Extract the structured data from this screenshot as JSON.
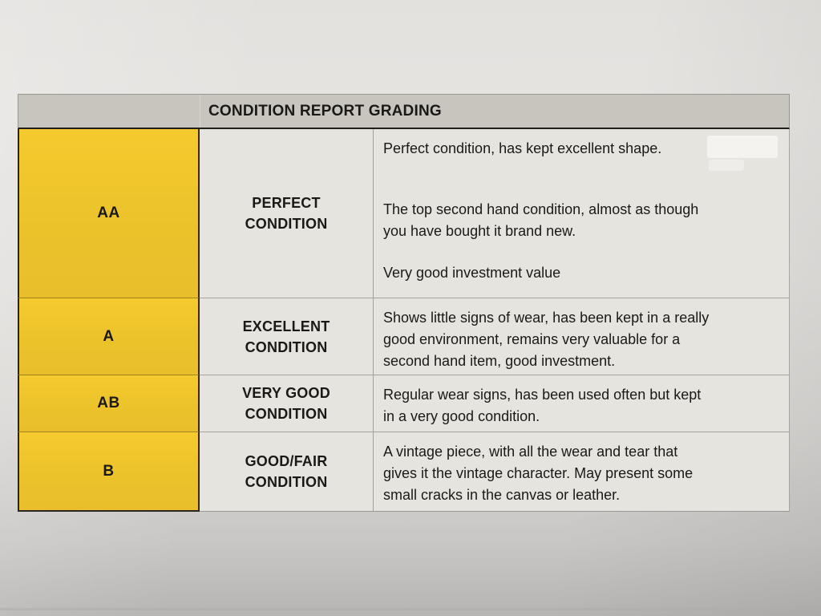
{
  "table": {
    "title": "CONDITION REPORT GRADING",
    "columns": [
      "grade",
      "condition",
      "description"
    ],
    "rows": [
      {
        "grade": "AA",
        "condition_lines": [
          "PERFECT",
          "CONDITION"
        ],
        "paragraphs": [
          "Perfect condition, has kept excellent shape.",
          "The top second hand condition, almost as though\nyou have bought it brand new.",
          "Very good investment value"
        ]
      },
      {
        "grade": "A",
        "condition_lines": [
          "EXCELLENT",
          "CONDITION"
        ],
        "paragraphs": [
          "Shows little signs of wear, has been kept in a really\ngood environment, remains very valuable for a\nsecond hand item, good investment."
        ]
      },
      {
        "grade": "AB",
        "condition_lines": [
          "VERY GOOD",
          "CONDITION"
        ],
        "paragraphs": [
          "Regular wear signs, has been used often but kept\nin a very good condition."
        ]
      },
      {
        "grade": "B",
        "condition_lines": [
          "GOOD/FAIR",
          "CONDITION"
        ],
        "paragraphs": [
          "A vintage piece, with all the wear and tear that\ngives it the vintage character. May present some\nsmall cracks in the canvas or leather."
        ]
      }
    ],
    "colors": {
      "grade_column_bg": "#eec42c",
      "header_bg": "#c8c5bf",
      "cell_bg": "#e6e4df",
      "paper_bg_top": "#e3e1de",
      "paper_bg_bottom": "#b7b5b3",
      "text": "#1b1916"
    }
  }
}
